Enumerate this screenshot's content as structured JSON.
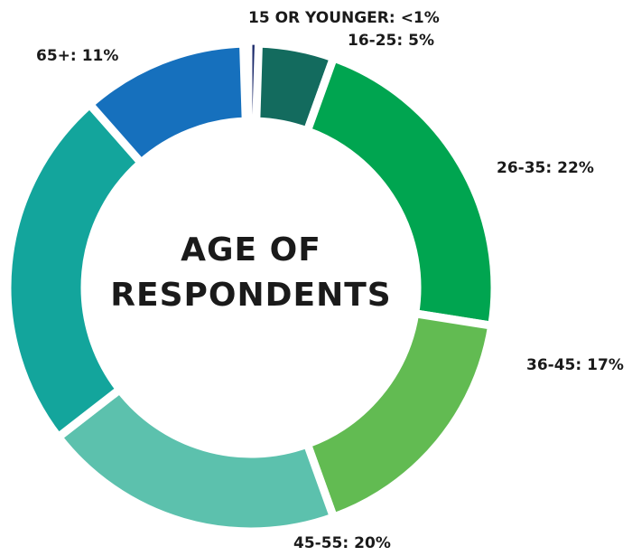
{
  "chart_data": {
    "type": "donut",
    "title": [
      "AGE OF",
      "RESPONDENTS"
    ],
    "categories": [
      "15 OR YOUNGER:",
      "16-25:",
      "26-35:",
      "36-45:",
      "45-55:",
      null,
      "65+:"
    ],
    "values": [
      0.5,
      5,
      22,
      17,
      20,
      24,
      11
    ],
    "value_labels": [
      "<1%",
      "5%",
      "22%",
      "17%",
      "20%",
      null,
      "11%"
    ],
    "colors": [
      "#1b2a6b",
      "#136b5e",
      "#00a550",
      "#62bb52",
      "#5cc1ad",
      "#13a59c",
      "#1670bd"
    ]
  }
}
